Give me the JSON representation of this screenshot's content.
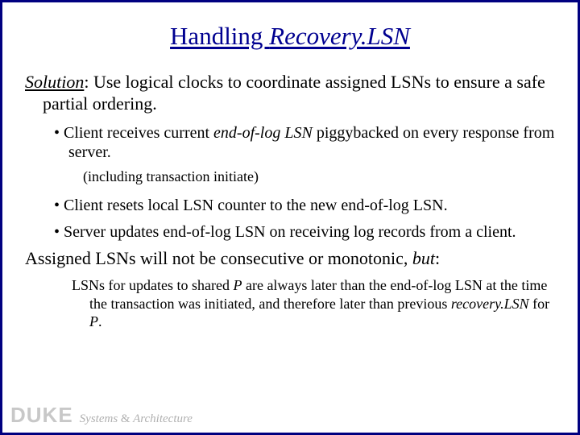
{
  "colors": {
    "border": "#000080",
    "title": "#000090",
    "body": "#000000",
    "footer_logo": "#c8c8c8",
    "footer_text": "#b0b0b0",
    "background": "#ffffff"
  },
  "title": {
    "plain": "Handling ",
    "italic": "Recovery.LSN"
  },
  "solution": {
    "label": "Solution",
    "text": ": Use logical clocks to coordinate assigned LSNs to ensure a safe partial ordering."
  },
  "bullets": [
    {
      "pre": "Client receives current ",
      "em": "end-of-log LSN",
      "post": " piggybacked on every response from server.",
      "sub": "(including transaction initiate)"
    },
    {
      "pre": "Client resets local LSN counter to the new end-of-log LSN.",
      "em": "",
      "post": "",
      "sub": ""
    },
    {
      "pre": "Server updates end-of-log LSN on receiving log records from a client.",
      "em": "",
      "post": "",
      "sub": ""
    }
  ],
  "para": {
    "pre": "Assigned LSNs will not be consecutive or monotonic, ",
    "em": "but",
    "post": ":"
  },
  "closing": {
    "t1": "LSNs for updates to shared ",
    "em1": "P",
    "t2": " are always later than the end-of-log LSN at the time the transaction was initiated, and therefore later than previous ",
    "em2": "recovery.LSN",
    "t3": " for ",
    "em3": "P",
    "t4": "."
  },
  "footer": {
    "logo": "DUKE",
    "text1": "Systems ",
    "amp": "&",
    "text2": " Architecture"
  }
}
